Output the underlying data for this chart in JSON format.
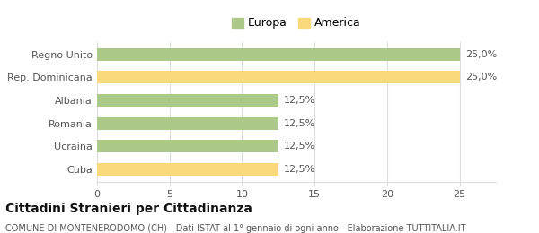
{
  "categories": [
    "Cuba",
    "Ucraina",
    "Romania",
    "Albania",
    "Rep. Dominicana",
    "Regno Unito"
  ],
  "values": [
    12.5,
    12.5,
    12.5,
    12.5,
    25.0,
    25.0
  ],
  "colors": [
    "#f9d97c",
    "#adc98a",
    "#adc98a",
    "#adc98a",
    "#f9d97c",
    "#adc98a"
  ],
  "bar_labels": [
    "12,5%",
    "12,5%",
    "12,5%",
    "12,5%",
    "25,0%",
    "25,0%"
  ],
  "legend": [
    {
      "label": "Europa",
      "color": "#adc98a"
    },
    {
      "label": "America",
      "color": "#f9d97c"
    }
  ],
  "xlim": [
    0,
    27.5
  ],
  "xticks": [
    0,
    5,
    10,
    15,
    20,
    25
  ],
  "title": "Cittadini Stranieri per Cittadinanza",
  "subtitle": "COMUNE DI MONTENERODOMO (CH) - Dati ISTAT al 1° gennaio di ogni anno - Elaborazione TUTTITALIA.IT",
  "title_fontsize": 10,
  "subtitle_fontsize": 7,
  "label_fontsize": 8,
  "tick_fontsize": 8,
  "legend_fontsize": 9,
  "bar_height": 0.55,
  "bg_color": "#ffffff",
  "grid_color": "#dddddd",
  "text_color": "#555555"
}
